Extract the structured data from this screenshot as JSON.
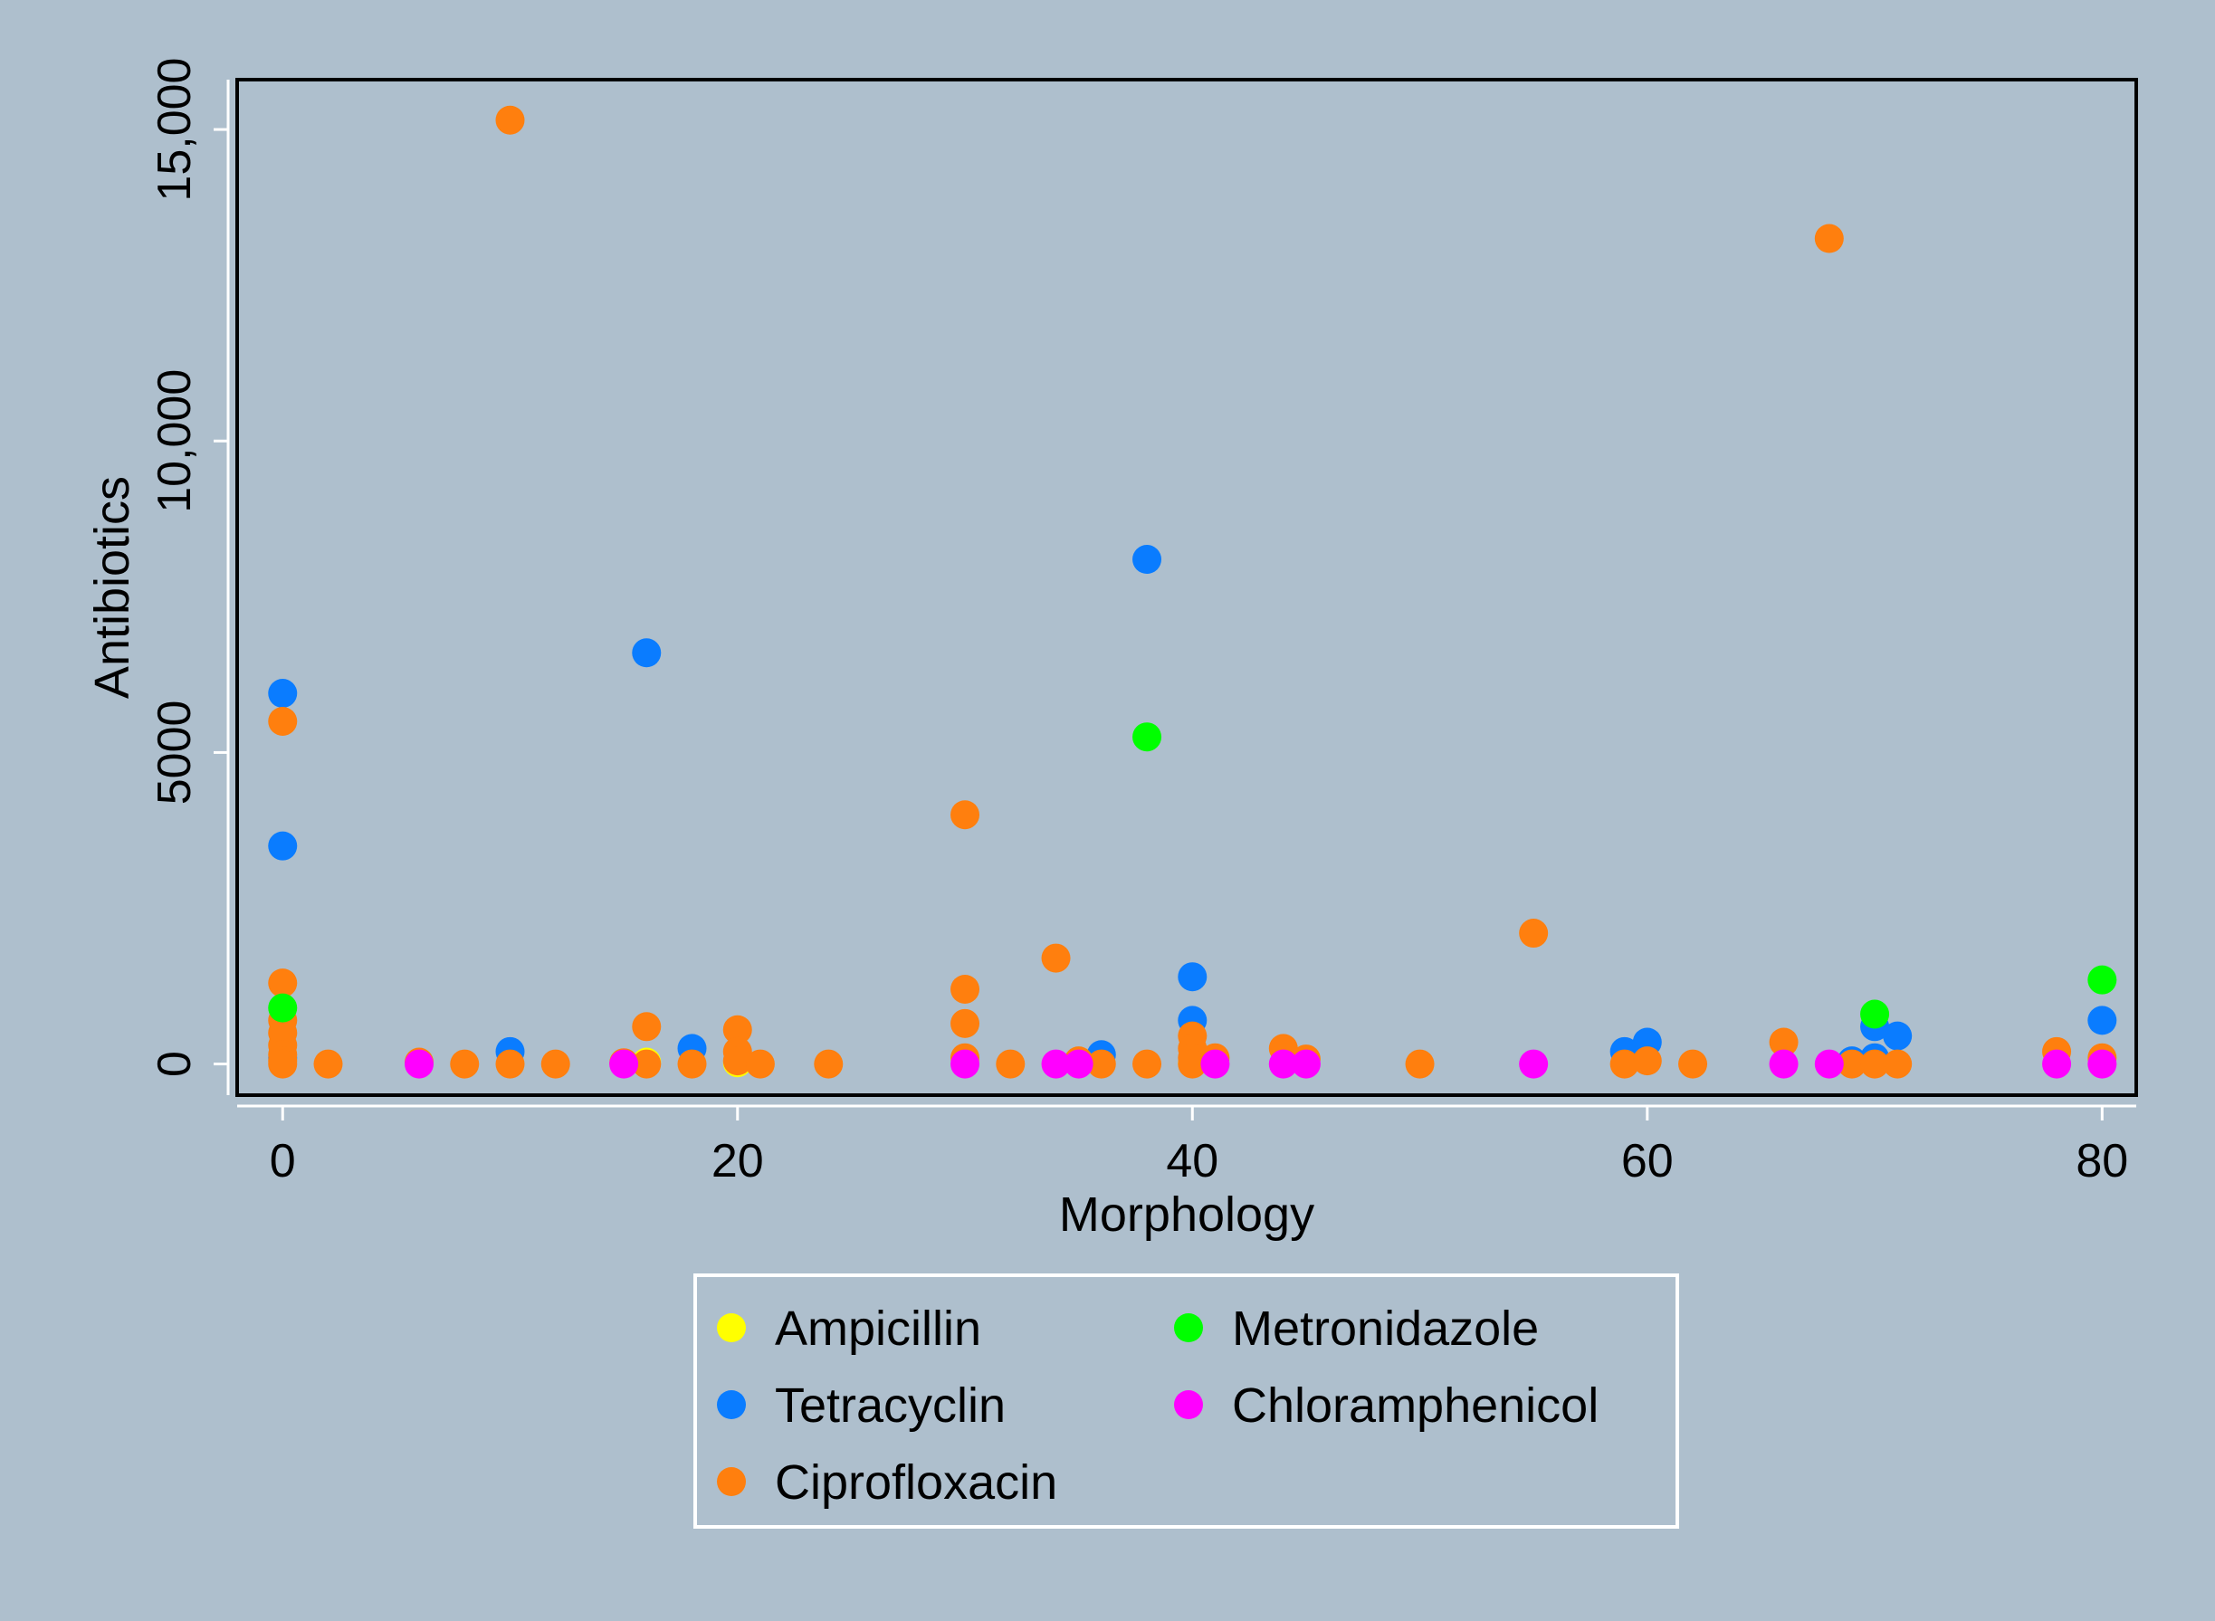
{
  "chart_data": {
    "type": "scatter",
    "title": "",
    "xlabel": "Morphology",
    "ylabel": "Antibiotics",
    "xlim": [
      -2,
      81.5
    ],
    "ylim": [
      -500,
      15800
    ],
    "xticks": [
      0,
      20,
      40,
      60,
      80
    ],
    "xtick_labels": [
      "0",
      "20",
      "40",
      "60",
      "80"
    ],
    "yticks": [
      0,
      5000,
      10000,
      15000
    ],
    "ytick_labels": [
      "0",
      "5000",
      "10,000",
      "15,000"
    ],
    "grid": false,
    "legend_position": "bottom",
    "colors": {
      "background": "#aebfcd",
      "plot_border": "#000000",
      "Ampicillin": "#ffff00",
      "Tetracyclin": "#0a7cff",
      "Ciprofloxacin": "#ff7f0e",
      "Metronidazole": "#00ff00",
      "Chloramphenicol": "#ff00ff"
    },
    "series": [
      {
        "name": "Ampicillin",
        "points": [
          [
            16,
            30
          ],
          [
            20,
            20
          ],
          [
            40,
            10
          ]
        ]
      },
      {
        "name": "Tetracyclin",
        "points": [
          [
            0,
            5950
          ],
          [
            0,
            3500
          ],
          [
            0,
            100
          ],
          [
            10,
            200
          ],
          [
            16,
            6600
          ],
          [
            18,
            250
          ],
          [
            36,
            150
          ],
          [
            38,
            8100
          ],
          [
            40,
            1400
          ],
          [
            40,
            700
          ],
          [
            59,
            200
          ],
          [
            60,
            350
          ],
          [
            69,
            50
          ],
          [
            70,
            600
          ],
          [
            70,
            100
          ],
          [
            71,
            450
          ],
          [
            80,
            700
          ]
        ]
      },
      {
        "name": "Ciprofloxacin",
        "points": [
          [
            0,
            5500
          ],
          [
            0,
            1300
          ],
          [
            0,
            700
          ],
          [
            0,
            500
          ],
          [
            0,
            300
          ],
          [
            0,
            150
          ],
          [
            0,
            50
          ],
          [
            0,
            0
          ],
          [
            2,
            0
          ],
          [
            6,
            30
          ],
          [
            8,
            0
          ],
          [
            10,
            15150
          ],
          [
            10,
            0
          ],
          [
            12,
            0
          ],
          [
            15,
            20
          ],
          [
            16,
            600
          ],
          [
            16,
            0
          ],
          [
            18,
            0
          ],
          [
            20,
            550
          ],
          [
            20,
            200
          ],
          [
            20,
            50
          ],
          [
            21,
            0
          ],
          [
            24,
            0
          ],
          [
            30,
            4000
          ],
          [
            30,
            1200
          ],
          [
            30,
            650
          ],
          [
            30,
            100
          ],
          [
            32,
            0
          ],
          [
            34,
            1700
          ],
          [
            35,
            50
          ],
          [
            36,
            0
          ],
          [
            38,
            0
          ],
          [
            40,
            450
          ],
          [
            40,
            250
          ],
          [
            40,
            100
          ],
          [
            40,
            0
          ],
          [
            41,
            100
          ],
          [
            44,
            250
          ],
          [
            45,
            80
          ],
          [
            50,
            0
          ],
          [
            55,
            2100
          ],
          [
            59,
            0
          ],
          [
            60,
            50
          ],
          [
            62,
            0
          ],
          [
            66,
            350
          ],
          [
            68,
            13250
          ],
          [
            69,
            0
          ],
          [
            70,
            0
          ],
          [
            71,
            0
          ],
          [
            78,
            200
          ],
          [
            80,
            100
          ]
        ]
      },
      {
        "name": "Metronidazole",
        "points": [
          [
            0,
            900
          ],
          [
            38,
            5250
          ],
          [
            70,
            800
          ],
          [
            80,
            1350
          ]
        ]
      },
      {
        "name": "Chloramphenicol",
        "points": [
          [
            6,
            0
          ],
          [
            15,
            0
          ],
          [
            30,
            0
          ],
          [
            34,
            0
          ],
          [
            35,
            0
          ],
          [
            41,
            0
          ],
          [
            44,
            0
          ],
          [
            45,
            0
          ],
          [
            55,
            0
          ],
          [
            66,
            0
          ],
          [
            68,
            0
          ],
          [
            78,
            0
          ],
          [
            80,
            0
          ]
        ]
      }
    ],
    "legend": [
      "Ampicillin",
      "Tetracyclin",
      "Ciprofloxacin",
      "Metronidazole",
      "Chloramphenicol"
    ]
  }
}
